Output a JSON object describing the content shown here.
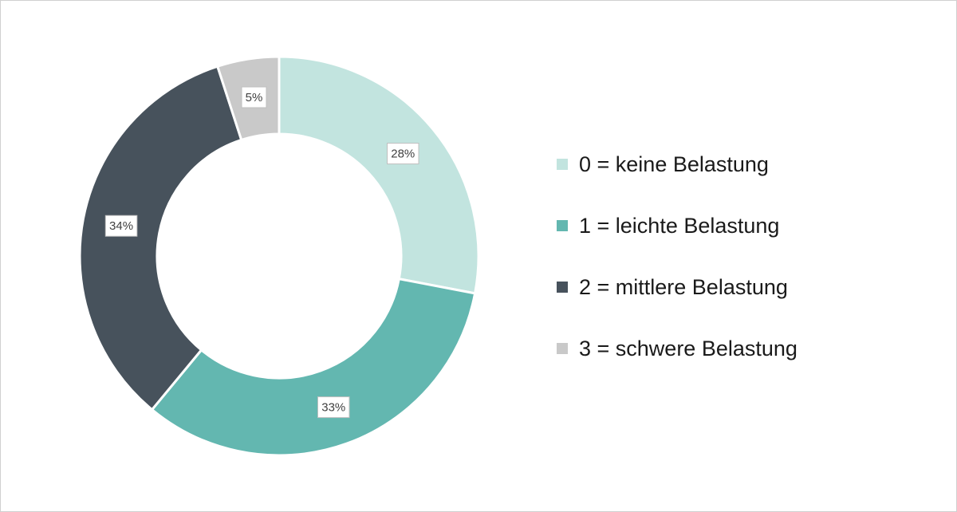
{
  "chart_data": {
    "type": "donut",
    "categories": [
      "0 = keine Belastung",
      "1 = leichte Belastung",
      "2 = mittlere Belastung",
      "3 = schwere Belastung"
    ],
    "values": [
      28,
      33,
      34,
      5
    ],
    "data_labels": [
      "28%",
      "33%",
      "34%",
      "5%"
    ],
    "colors": [
      "#c2e4df",
      "#63b7b0",
      "#47525c",
      "#c9c9c9"
    ],
    "legend_position": "right",
    "value_unit": "%"
  }
}
